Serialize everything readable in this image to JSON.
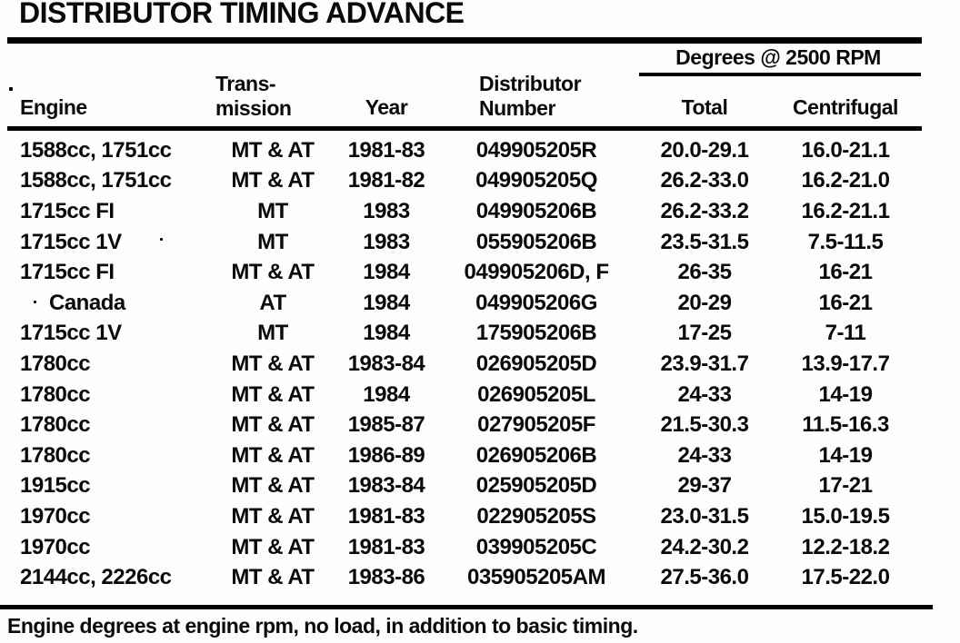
{
  "title": "DISTRIBUTOR TIMING ADVANCE",
  "table": {
    "degrees_group_header": "Degrees @ 2500 RPM",
    "headers": {
      "engine": "Engine",
      "transmission_line1": "Trans-",
      "transmission_line2": "mission",
      "year": "Year",
      "distributor_line1": "Distributor",
      "distributor_line2": "Number",
      "total": "Total",
      "centrifugal": "Centrifugal"
    },
    "rows": [
      {
        "engine": "1588cc, 1751cc",
        "transmission": "MT & AT",
        "year": "1981-83",
        "distributor": "049905205R",
        "total": "20.0-29.1",
        "centrifugal": "16.0-21.1",
        "indent": false
      },
      {
        "engine": "1588cc, 1751cc",
        "transmission": "MT & AT",
        "year": "1981-82",
        "distributor": "049905205Q",
        "total": "26.2-33.0",
        "centrifugal": "16.2-21.0",
        "indent": false
      },
      {
        "engine": "1715cc FI",
        "transmission": "MT",
        "year": "1983",
        "distributor": "049905206B",
        "total": "26.2-33.2",
        "centrifugal": "16.2-21.1",
        "indent": false
      },
      {
        "engine": "1715cc 1V",
        "transmission": "MT",
        "year": "1983",
        "distributor": "055905206B",
        "total": "23.5-31.5",
        "centrifugal": "7.5-11.5",
        "indent": false
      },
      {
        "engine": "1715cc FI",
        "transmission": "MT & AT",
        "year": "1984",
        "distributor": "049905206D, F",
        "total": "26-35",
        "centrifugal": "16-21",
        "indent": false
      },
      {
        "engine": "Canada",
        "transmission": "AT",
        "year": "1984",
        "distributor": "049905206G",
        "total": "20-29",
        "centrifugal": "16-21",
        "indent": true
      },
      {
        "engine": "1715cc 1V",
        "transmission": "MT",
        "year": "1984",
        "distributor": "175905206B",
        "total": "17-25",
        "centrifugal": "7-11",
        "indent": false
      },
      {
        "engine": "1780cc",
        "transmission": "MT & AT",
        "year": "1983-84",
        "distributor": "026905205D",
        "total": "23.9-31.7",
        "centrifugal": "13.9-17.7",
        "indent": false
      },
      {
        "engine": "1780cc",
        "transmission": "MT & AT",
        "year": "1984",
        "distributor": "026905205L",
        "total": "24-33",
        "centrifugal": "14-19",
        "indent": false
      },
      {
        "engine": "1780cc",
        "transmission": "MT & AT",
        "year": "1985-87",
        "distributor": "027905205F",
        "total": "21.5-30.3",
        "centrifugal": "11.5-16.3",
        "indent": false
      },
      {
        "engine": "1780cc",
        "transmission": "MT & AT",
        "year": "1986-89",
        "distributor": "026905206B",
        "total": "24-33",
        "centrifugal": "14-19",
        "indent": false
      },
      {
        "engine": "1915cc",
        "transmission": "MT & AT",
        "year": "1983-84",
        "distributor": "025905205D",
        "total": "29-37",
        "centrifugal": "17-21",
        "indent": false
      },
      {
        "engine": "1970cc",
        "transmission": "MT & AT",
        "year": "1981-83",
        "distributor": "022905205S",
        "total": "23.0-31.5",
        "centrifugal": "15.0-19.5",
        "indent": false
      },
      {
        "engine": "1970cc",
        "transmission": "MT & AT",
        "year": "1981-83",
        "distributor": "039905205C",
        "total": "24.2-30.2",
        "centrifugal": "12.2-18.2",
        "indent": false
      },
      {
        "engine": "2144cc, 2226cc",
        "transmission": "MT & AT",
        "year": "1983-86",
        "distributor": "035905205AM",
        "total": "27.5-36.0",
        "centrifugal": "17.5-22.0",
        "indent": false
      }
    ]
  },
  "footnote": "Engine degrees at engine rpm, no load, in addition to basic timing."
}
